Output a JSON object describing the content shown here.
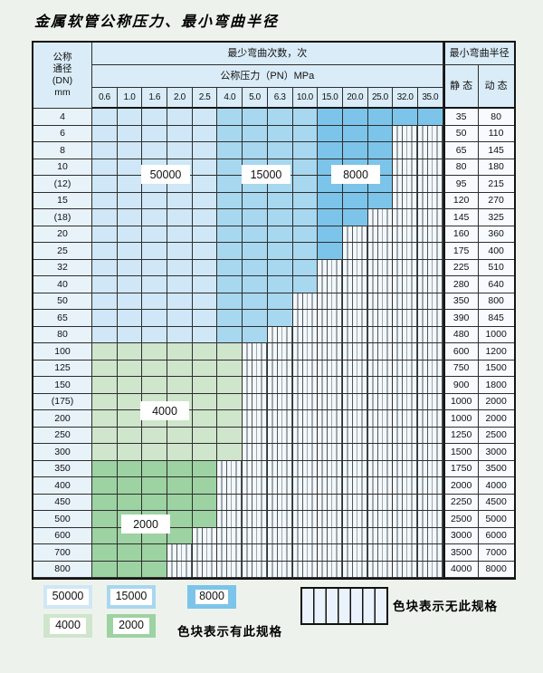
{
  "title": "金属软管公称压力、最小弯曲半径",
  "colors": {
    "50000": "#cfe7f6",
    "15000": "#a8d7f0",
    "8000": "#7cc4e9",
    "4000": "#cfe5cc",
    "2000": "#9dd2a2"
  },
  "table": {
    "dn_header_lines": [
      "公称",
      "通径",
      "(DN)",
      "mm"
    ],
    "cycles_header": "最少弯曲次数，次",
    "pn_header": "公称压力（PN）MPa",
    "pressures": [
      "0.6",
      "1.0",
      "1.6",
      "2.0",
      "2.5",
      "4.0",
      "5.0",
      "6.3",
      "10.0",
      "15.0",
      "20.0",
      "25.0",
      "32.0",
      "35.0"
    ],
    "radius_header": "最小弯曲半径",
    "static_header": "静 态",
    "dynamic_header": "动 态",
    "blue_bands": [
      {
        "label": "50000",
        "columns": [
          "0.6",
          "1.0",
          "1.6",
          "2.0",
          "2.5"
        ]
      },
      {
        "label": "15000",
        "columns": [
          "4.0",
          "5.0",
          "6.3",
          "10.0"
        ]
      },
      {
        "label": "8000",
        "columns": [
          "15.0",
          "20.0",
          "25.0",
          "32.0",
          "35.0"
        ]
      }
    ],
    "rating_labels": [
      {
        "text": "50000"
      },
      {
        "text": "15000"
      },
      {
        "text": "8000"
      },
      {
        "text": "4000"
      },
      {
        "text": "2000"
      }
    ],
    "rows": [
      {
        "dn": "4",
        "colored_through": "35.0",
        "row_rating": null,
        "static": "35",
        "dynamic": "80"
      },
      {
        "dn": "6",
        "colored_through": "25.0",
        "row_rating": null,
        "static": "50",
        "dynamic": "110"
      },
      {
        "dn": "8",
        "colored_through": "25.0",
        "row_rating": null,
        "static": "65",
        "dynamic": "145"
      },
      {
        "dn": "10",
        "colored_through": "25.0",
        "row_rating": null,
        "static": "80",
        "dynamic": "180"
      },
      {
        "dn": "(12)",
        "colored_through": "25.0",
        "row_rating": null,
        "static": "95",
        "dynamic": "215"
      },
      {
        "dn": "15",
        "colored_through": "25.0",
        "row_rating": null,
        "static": "120",
        "dynamic": "270"
      },
      {
        "dn": "(18)",
        "colored_through": "20.0",
        "row_rating": null,
        "static": "145",
        "dynamic": "325"
      },
      {
        "dn": "20",
        "colored_through": "15.0",
        "row_rating": null,
        "static": "160",
        "dynamic": "360"
      },
      {
        "dn": "25",
        "colored_through": "15.0",
        "row_rating": null,
        "static": "175",
        "dynamic": "400"
      },
      {
        "dn": "32",
        "colored_through": "10.0",
        "row_rating": null,
        "static": "225",
        "dynamic": "510"
      },
      {
        "dn": "40",
        "colored_through": "10.0",
        "row_rating": null,
        "static": "280",
        "dynamic": "640"
      },
      {
        "dn": "50",
        "colored_through": "6.3",
        "row_rating": null,
        "static": "350",
        "dynamic": "800"
      },
      {
        "dn": "65",
        "colored_through": "6.3",
        "row_rating": null,
        "static": "390",
        "dynamic": "845"
      },
      {
        "dn": "80",
        "colored_through": "5.0",
        "row_rating": null,
        "static": "480",
        "dynamic": "1000"
      },
      {
        "dn": "100",
        "colored_through": "4.0",
        "row_rating": "4000",
        "static": "600",
        "dynamic": "1200"
      },
      {
        "dn": "125",
        "colored_through": "4.0",
        "row_rating": "4000",
        "static": "750",
        "dynamic": "1500"
      },
      {
        "dn": "150",
        "colored_through": "4.0",
        "row_rating": "4000",
        "static": "900",
        "dynamic": "1800"
      },
      {
        "dn": "(175)",
        "colored_through": "4.0",
        "row_rating": "4000",
        "static": "1000",
        "dynamic": "2000"
      },
      {
        "dn": "200",
        "colored_through": "4.0",
        "row_rating": "4000",
        "static": "1000",
        "dynamic": "2000"
      },
      {
        "dn": "250",
        "colored_through": "4.0",
        "row_rating": "4000",
        "static": "1250",
        "dynamic": "2500"
      },
      {
        "dn": "300",
        "colored_through": "4.0",
        "row_rating": "4000",
        "static": "1500",
        "dynamic": "3000"
      },
      {
        "dn": "350",
        "colored_through": "2.5",
        "row_rating": "2000",
        "static": "1750",
        "dynamic": "3500"
      },
      {
        "dn": "400",
        "colored_through": "2.5",
        "row_rating": "2000",
        "static": "2000",
        "dynamic": "4000"
      },
      {
        "dn": "450",
        "colored_through": "2.5",
        "row_rating": "2000",
        "static": "2250",
        "dynamic": "4500"
      },
      {
        "dn": "500",
        "colored_through": "2.5",
        "row_rating": "2000",
        "static": "2500",
        "dynamic": "5000"
      },
      {
        "dn": "600",
        "colored_through": "2.0",
        "row_rating": "2000",
        "static": "3000",
        "dynamic": "6000"
      },
      {
        "dn": "700",
        "colored_through": "1.6",
        "row_rating": "2000",
        "static": "3500",
        "dynamic": "7000"
      },
      {
        "dn": "800",
        "colored_through": "1.6",
        "row_rating": "2000",
        "static": "4000",
        "dynamic": "8000"
      }
    ]
  },
  "legend": {
    "swatches": [
      {
        "label": "50000"
      },
      {
        "label": "15000"
      },
      {
        "label": "8000"
      },
      {
        "label": "4000"
      },
      {
        "label": "2000"
      }
    ],
    "has_spec_text": "色块表示有此规格",
    "no_spec_text": "色块表示无此规格"
  }
}
